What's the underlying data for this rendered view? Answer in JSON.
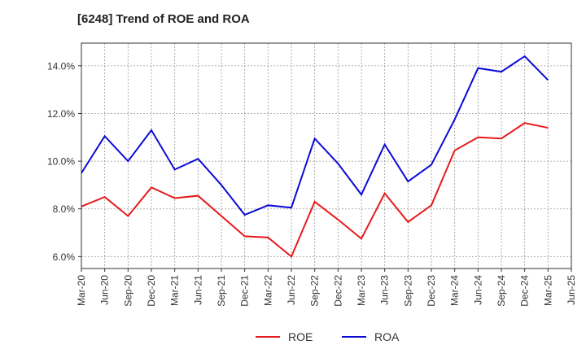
{
  "chart_data": {
    "type": "line",
    "title": "[6248]  Trend of ROE and ROA",
    "xlabel": "",
    "ylabel": "",
    "x_ticks": [
      "Mar-20",
      "Jun-20",
      "Sep-20",
      "Dec-20",
      "Mar-21",
      "Jun-21",
      "Sep-21",
      "Dec-21",
      "Mar-22",
      "Jun-22",
      "Sep-22",
      "Dec-22",
      "Mar-23",
      "Jun-23",
      "Sep-23",
      "Dec-23",
      "Mar-24",
      "Jun-24",
      "Sep-24",
      "Dec-24",
      "Mar-25",
      "Jun-25"
    ],
    "y_ticks": [
      "6.0%",
      "8.0%",
      "10.0%",
      "12.0%",
      "14.0%"
    ],
    "y_tick_values": [
      6,
      8,
      10,
      12,
      14
    ],
    "ylim": [
      5.5,
      14.95
    ],
    "grid": true,
    "legend_position": "bottom",
    "series": [
      {
        "name": "ROE",
        "color": "#e8191a",
        "x": [
          "Mar-20",
          "Jun-20",
          "Sep-20",
          "Dec-20",
          "Mar-21",
          "Jun-21",
          "Sep-21",
          "Dec-21",
          "Mar-22",
          "Jun-22",
          "Sep-22",
          "Dec-22",
          "Mar-23",
          "Jun-23",
          "Sep-23",
          "Dec-23",
          "Mar-24",
          "Jun-24",
          "Sep-24",
          "Dec-24",
          "Mar-25"
        ],
        "values": [
          8.1,
          8.5,
          7.7,
          8.9,
          8.45,
          8.55,
          7.7,
          6.85,
          6.8,
          6.0,
          8.3,
          7.55,
          6.75,
          8.65,
          7.45,
          8.15,
          10.45,
          11.0,
          10.95,
          11.6,
          11.4
        ]
      },
      {
        "name": "ROA",
        "color": "#0b0bd6",
        "x": [
          "Mar-20",
          "Jun-20",
          "Sep-20",
          "Dec-20",
          "Mar-21",
          "Jun-21",
          "Sep-21",
          "Dec-21",
          "Mar-22",
          "Jun-22",
          "Sep-22",
          "Dec-22",
          "Mar-23",
          "Jun-23",
          "Sep-23",
          "Dec-23",
          "Mar-24",
          "Jun-24",
          "Sep-24",
          "Dec-24",
          "Mar-25"
        ],
        "values": [
          9.5,
          11.05,
          10.0,
          11.3,
          9.65,
          10.1,
          9.0,
          7.75,
          8.15,
          8.05,
          10.95,
          9.9,
          8.6,
          10.7,
          9.15,
          9.85,
          11.75,
          13.9,
          13.75,
          14.4,
          13.4
        ]
      }
    ]
  }
}
